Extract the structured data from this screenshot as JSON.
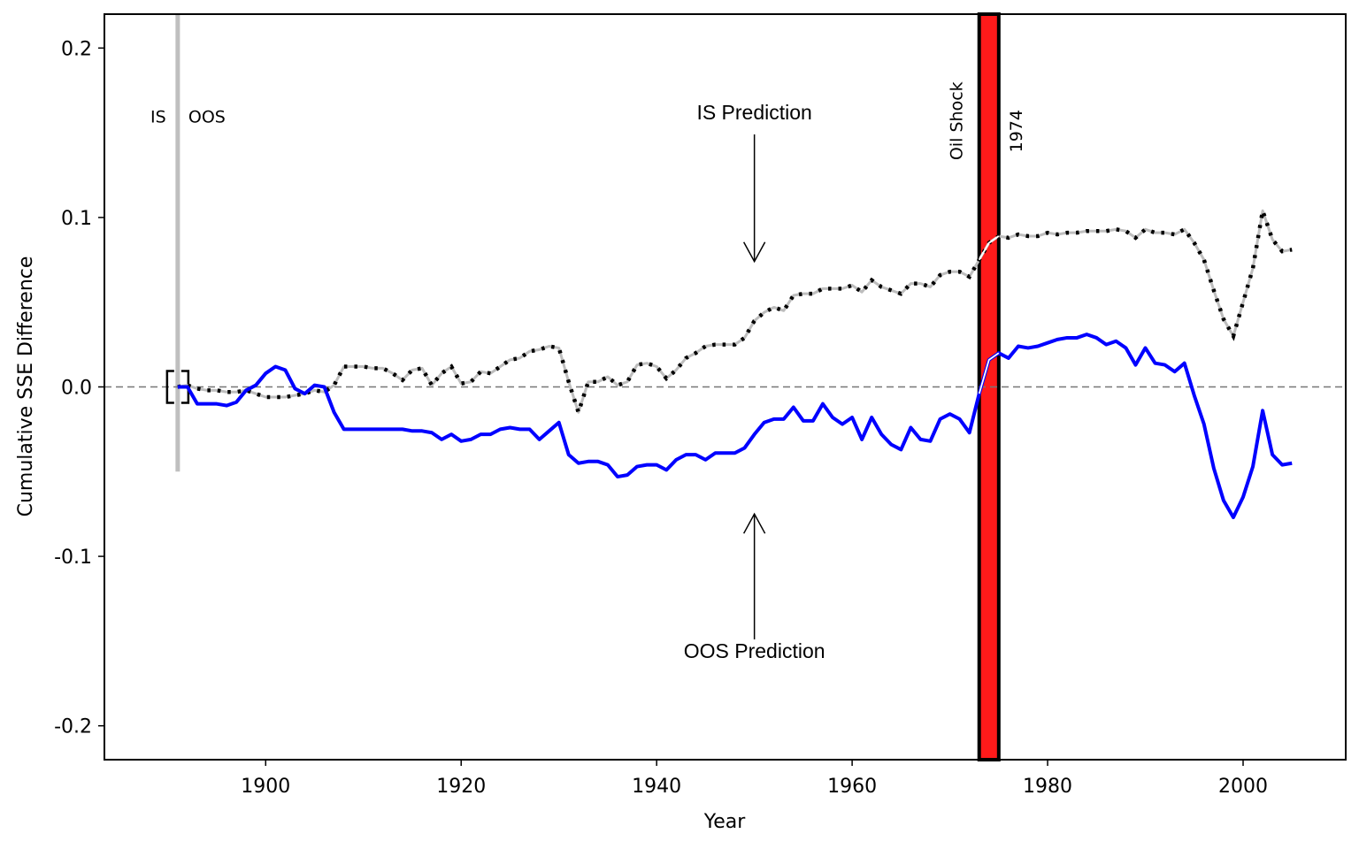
{
  "chart_data": {
    "type": "line",
    "title": "",
    "xlabel": "Year",
    "ylabel": "Cumulative SSE Difference",
    "xlim": [
      1883.5,
      2010.5
    ],
    "ylim": [
      -0.22,
      0.22
    ],
    "x_ticks": [
      1900,
      1920,
      1940,
      1960,
      1980,
      2000
    ],
    "y_ticks": [
      0.2,
      0.1,
      0.0,
      -0.1,
      -0.2
    ],
    "y_tick_labels": [
      "0.2",
      "0.1",
      "0.0",
      "-0.1",
      "-0.2"
    ],
    "grid": false,
    "legend": "none",
    "x": [
      1891,
      1892,
      1893,
      1894,
      1895,
      1896,
      1897,
      1898,
      1899,
      1900,
      1901,
      1902,
      1903,
      1904,
      1905,
      1906,
      1907,
      1908,
      1909,
      1910,
      1911,
      1912,
      1913,
      1914,
      1915,
      1916,
      1917,
      1918,
      1919,
      1920,
      1921,
      1922,
      1923,
      1924,
      1925,
      1926,
      1927,
      1928,
      1929,
      1930,
      1931,
      1932,
      1933,
      1934,
      1935,
      1936,
      1937,
      1938,
      1939,
      1940,
      1941,
      1942,
      1943,
      1944,
      1945,
      1946,
      1947,
      1948,
      1949,
      1950,
      1951,
      1952,
      1953,
      1954,
      1955,
      1956,
      1957,
      1958,
      1959,
      1960,
      1961,
      1962,
      1963,
      1964,
      1965,
      1966,
      1967,
      1968,
      1969,
      1970,
      1971,
      1972,
      1973,
      1974,
      1975,
      1976,
      1977,
      1978,
      1979,
      1980,
      1981,
      1982,
      1983,
      1984,
      1985,
      1986,
      1987,
      1988,
      1989,
      1990,
      1991,
      1992,
      1993,
      1994,
      1995,
      1996,
      1997,
      1998,
      1999,
      2000,
      2001,
      2002,
      2003,
      2004,
      2005
    ],
    "series": [
      {
        "name": "IS Prediction",
        "color": "#000000",
        "halo_color": "#bdbdbd",
        "style": "dotted",
        "values": [
          0.0,
          0.001,
          -0.001,
          -0.002,
          -0.002,
          -0.003,
          -0.003,
          -0.002,
          -0.004,
          -0.006,
          -0.006,
          -0.006,
          -0.005,
          -0.004,
          -0.002,
          -0.003,
          0.001,
          0.012,
          0.012,
          0.012,
          0.011,
          0.011,
          0.008,
          0.004,
          0.01,
          0.011,
          0.001,
          0.008,
          0.012,
          0.002,
          0.003,
          0.009,
          0.008,
          0.012,
          0.016,
          0.017,
          0.021,
          0.022,
          0.024,
          0.023,
          0.003,
          -0.015,
          0.003,
          0.003,
          0.006,
          0.001,
          0.003,
          0.013,
          0.014,
          0.012,
          0.005,
          0.01,
          0.017,
          0.02,
          0.024,
          0.025,
          0.025,
          0.025,
          0.029,
          0.039,
          0.044,
          0.047,
          0.045,
          0.054,
          0.055,
          0.055,
          0.058,
          0.058,
          0.058,
          0.06,
          0.056,
          0.063,
          0.059,
          0.057,
          0.055,
          0.061,
          0.061,
          0.059,
          0.066,
          0.068,
          0.068,
          0.065,
          0.075,
          0.085,
          0.089,
          0.088,
          0.09,
          0.089,
          0.089,
          0.091,
          0.09,
          0.091,
          0.091,
          0.092,
          0.092,
          0.092,
          0.093,
          0.092,
          0.088,
          0.093,
          0.091,
          0.091,
          0.09,
          0.093,
          0.085,
          0.075,
          0.057,
          0.04,
          0.03,
          0.05,
          0.07,
          0.104,
          0.087,
          0.08,
          0.081
        ]
      },
      {
        "name": "OOS Prediction",
        "color": "#0000ff",
        "style": "solid",
        "values": [
          0.0,
          0.0,
          -0.01,
          -0.01,
          -0.01,
          -0.011,
          -0.009,
          -0.002,
          0.001,
          0.008,
          0.012,
          0.01,
          -0.001,
          -0.004,
          0.001,
          0.0,
          -0.015,
          -0.025,
          -0.025,
          -0.025,
          -0.025,
          -0.025,
          -0.025,
          -0.025,
          -0.026,
          -0.026,
          -0.027,
          -0.031,
          -0.028,
          -0.032,
          -0.031,
          -0.028,
          -0.028,
          -0.025,
          -0.024,
          -0.025,
          -0.025,
          -0.031,
          -0.026,
          -0.021,
          -0.04,
          -0.045,
          -0.044,
          -0.044,
          -0.046,
          -0.053,
          -0.052,
          -0.047,
          -0.046,
          -0.046,
          -0.049,
          -0.043,
          -0.04,
          -0.04,
          -0.043,
          -0.039,
          -0.039,
          -0.039,
          -0.036,
          -0.028,
          -0.021,
          -0.019,
          -0.019,
          -0.012,
          -0.02,
          -0.02,
          -0.01,
          -0.018,
          -0.022,
          -0.018,
          -0.031,
          -0.018,
          -0.028,
          -0.034,
          -0.037,
          -0.024,
          -0.031,
          -0.032,
          -0.019,
          -0.016,
          -0.019,
          -0.027,
          -0.004,
          0.016,
          0.02,
          0.017,
          0.024,
          0.023,
          0.024,
          0.026,
          0.028,
          0.029,
          0.029,
          0.031,
          0.029,
          0.025,
          0.027,
          0.023,
          0.013,
          0.023,
          0.014,
          0.013,
          0.009,
          0.014,
          -0.005,
          -0.022,
          -0.048,
          -0.067,
          -0.077,
          -0.065,
          -0.047,
          -0.014,
          -0.04,
          -0.046,
          -0.045
        ]
      }
    ],
    "reference_line": {
      "y": 0.0,
      "style": "dashed",
      "color": "#777777"
    },
    "split_marker": {
      "year": 1891,
      "y_from": -0.05,
      "y_to": 0.22,
      "color": "#bfbfbf",
      "left_label": "IS",
      "right_label": "OOS"
    },
    "event_band": {
      "x_from": 1973,
      "x_to": 1975,
      "fill": "#ff1a1a",
      "edge": "#000000",
      "label_left": "Oil Shock",
      "label_right": "1974"
    },
    "annotations": [
      {
        "text": "IS Prediction",
        "text_x": 1950,
        "text_y": 0.158,
        "arrow_x": 1950,
        "arrow_from_y": 0.149,
        "arrow_to_y": 0.074
      },
      {
        "text": "OOS Prediction",
        "text_x": 1950,
        "text_y": -0.16,
        "arrow_x": 1950,
        "arrow_from_y": -0.149,
        "arrow_to_y": -0.075
      }
    ]
  }
}
